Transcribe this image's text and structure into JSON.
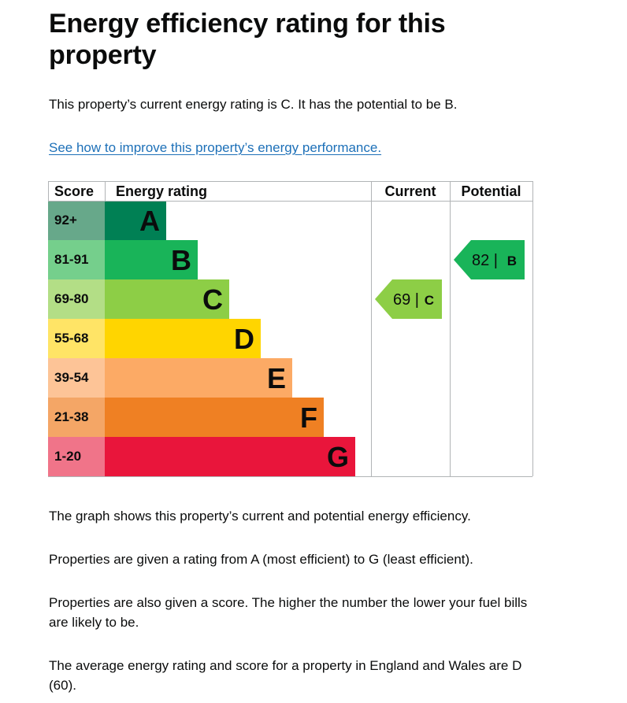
{
  "page": {
    "title": "Energy efficiency rating for this property",
    "intro": "This property’s current energy rating is C. It has the potential to be B.",
    "link_text": "See how to improve this property’s energy performance.",
    "explain_1": "The graph shows this property’s current and potential energy efficiency.",
    "explain_2": "Properties are given a rating from A (most efficient) to G (least efficient).",
    "explain_3": "Properties are also given a score. The higher the number the lower your fuel bills are likely to be.",
    "explain_4": "The average energy rating and score for a property in England and Wales are D (60)."
  },
  "chart_data": {
    "type": "table",
    "headers": {
      "score": "Score",
      "rating": "Energy rating",
      "current": "Current",
      "potential": "Potential"
    },
    "bands": [
      {
        "letter": "A",
        "range": "92+",
        "min": 92,
        "max": 100,
        "color": "#008054",
        "score_color": "#67a88a"
      },
      {
        "letter": "B",
        "range": "81-91",
        "min": 81,
        "max": 91,
        "color": "#19b459",
        "score_color": "#75cf8c"
      },
      {
        "letter": "C",
        "range": "69-80",
        "min": 69,
        "max": 80,
        "color": "#8dce46",
        "score_color": "#b3de86"
      },
      {
        "letter": "D",
        "range": "55-68",
        "min": 55,
        "max": 68,
        "color": "#ffd500",
        "score_color": "#ffe466"
      },
      {
        "letter": "E",
        "range": "39-54",
        "min": 39,
        "max": 54,
        "color": "#fcaa65",
        "score_color": "#fdc497"
      },
      {
        "letter": "F",
        "range": "21-38",
        "min": 21,
        "max": 38,
        "color": "#ef8023",
        "score_color": "#f4a666"
      },
      {
        "letter": "G",
        "range": "1-20",
        "min": 1,
        "max": 20,
        "color": "#e9153b",
        "score_color": "#f07489"
      }
    ],
    "current": {
      "score": 69,
      "letter": "C",
      "label": "69 |",
      "color": "#8dce46"
    },
    "potential": {
      "score": 82,
      "letter": "B",
      "label": "82 |",
      "color": "#19b459"
    }
  }
}
